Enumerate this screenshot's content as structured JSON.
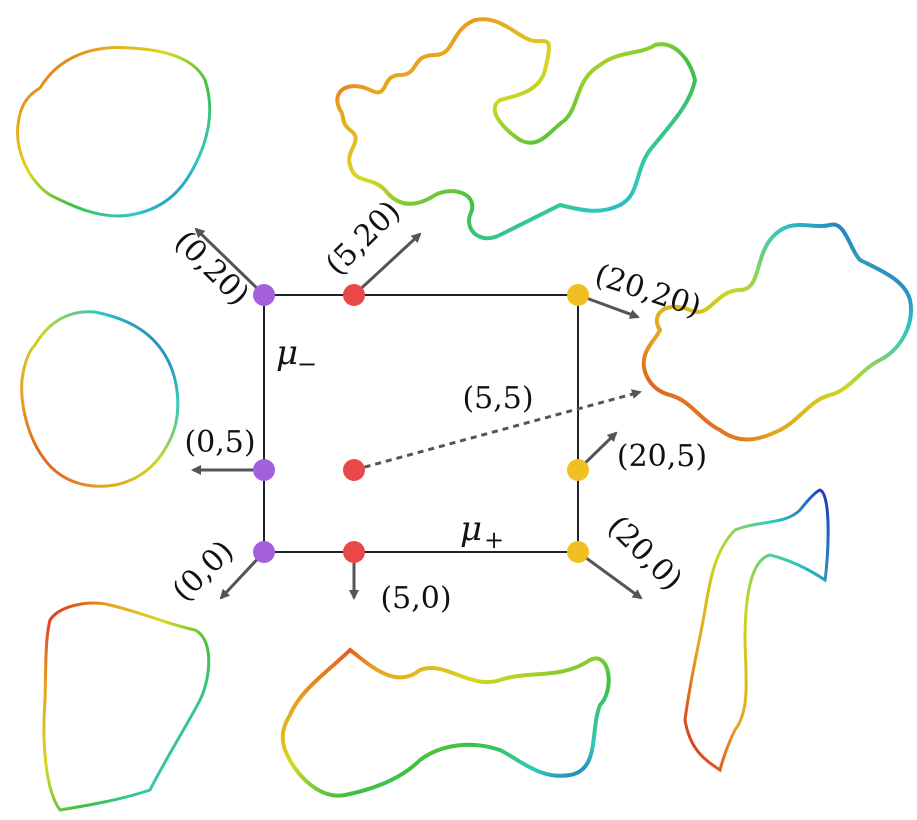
{
  "axes": {
    "horizontal_label": "μ",
    "horizontal_sub": "+",
    "vertical_label": "μ",
    "vertical_sub": "−"
  },
  "points": [
    {
      "id": "p-0-20",
      "label": "(0,20)",
      "color": "#a460dd"
    },
    {
      "id": "p-5-20",
      "label": "(5,20)",
      "color": "#e84848"
    },
    {
      "id": "p-20-20",
      "label": "(20,20)",
      "color": "#f0c020"
    },
    {
      "id": "p-0-5",
      "label": "(0,5)",
      "color": "#a460dd"
    },
    {
      "id": "p-5-5",
      "label": "(5,5)",
      "color": "#e84848"
    },
    {
      "id": "p-20-5",
      "label": "(20,5)",
      "color": "#f0c020"
    },
    {
      "id": "p-0-0",
      "label": "(0,0)",
      "color": "#a460dd"
    },
    {
      "id": "p-5-0",
      "label": "(5,0)",
      "color": "#e84848"
    },
    {
      "id": "p-20-0",
      "label": "(20,0)",
      "color": "#f0c020"
    }
  ],
  "colors": {
    "frame": "#222222",
    "arrow": "#555555",
    "rainbow": [
      "#d42020",
      "#e86a1a",
      "#e8b020",
      "#c8d820",
      "#40c040",
      "#30c8c0",
      "#2060d0",
      "#2020b0"
    ]
  }
}
